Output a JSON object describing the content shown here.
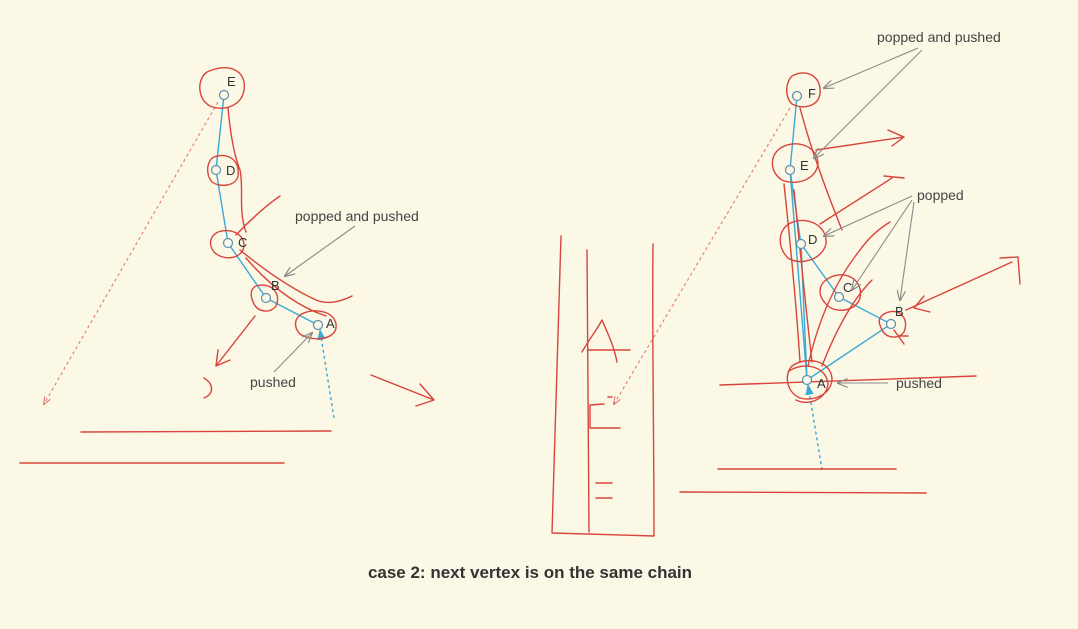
{
  "caption": "case 2: next vertex is on the same chain",
  "left_diagram": {
    "vertices": [
      "E",
      "D",
      "C",
      "B",
      "A"
    ],
    "annotations": {
      "popped_and_pushed": "popped and pushed",
      "pushed": "pushed"
    }
  },
  "right_diagram": {
    "vertices": [
      "F",
      "E",
      "D",
      "C",
      "B",
      "A"
    ],
    "annotations": {
      "popped_and_pushed": "popped and pushed",
      "popped": "popped",
      "pushed": "pushed"
    }
  },
  "colors": {
    "background": "#fbf8e6",
    "edge": "#3aa9d6",
    "ink": "#d9443c",
    "annotation_arrow": "#8a8a8a"
  }
}
